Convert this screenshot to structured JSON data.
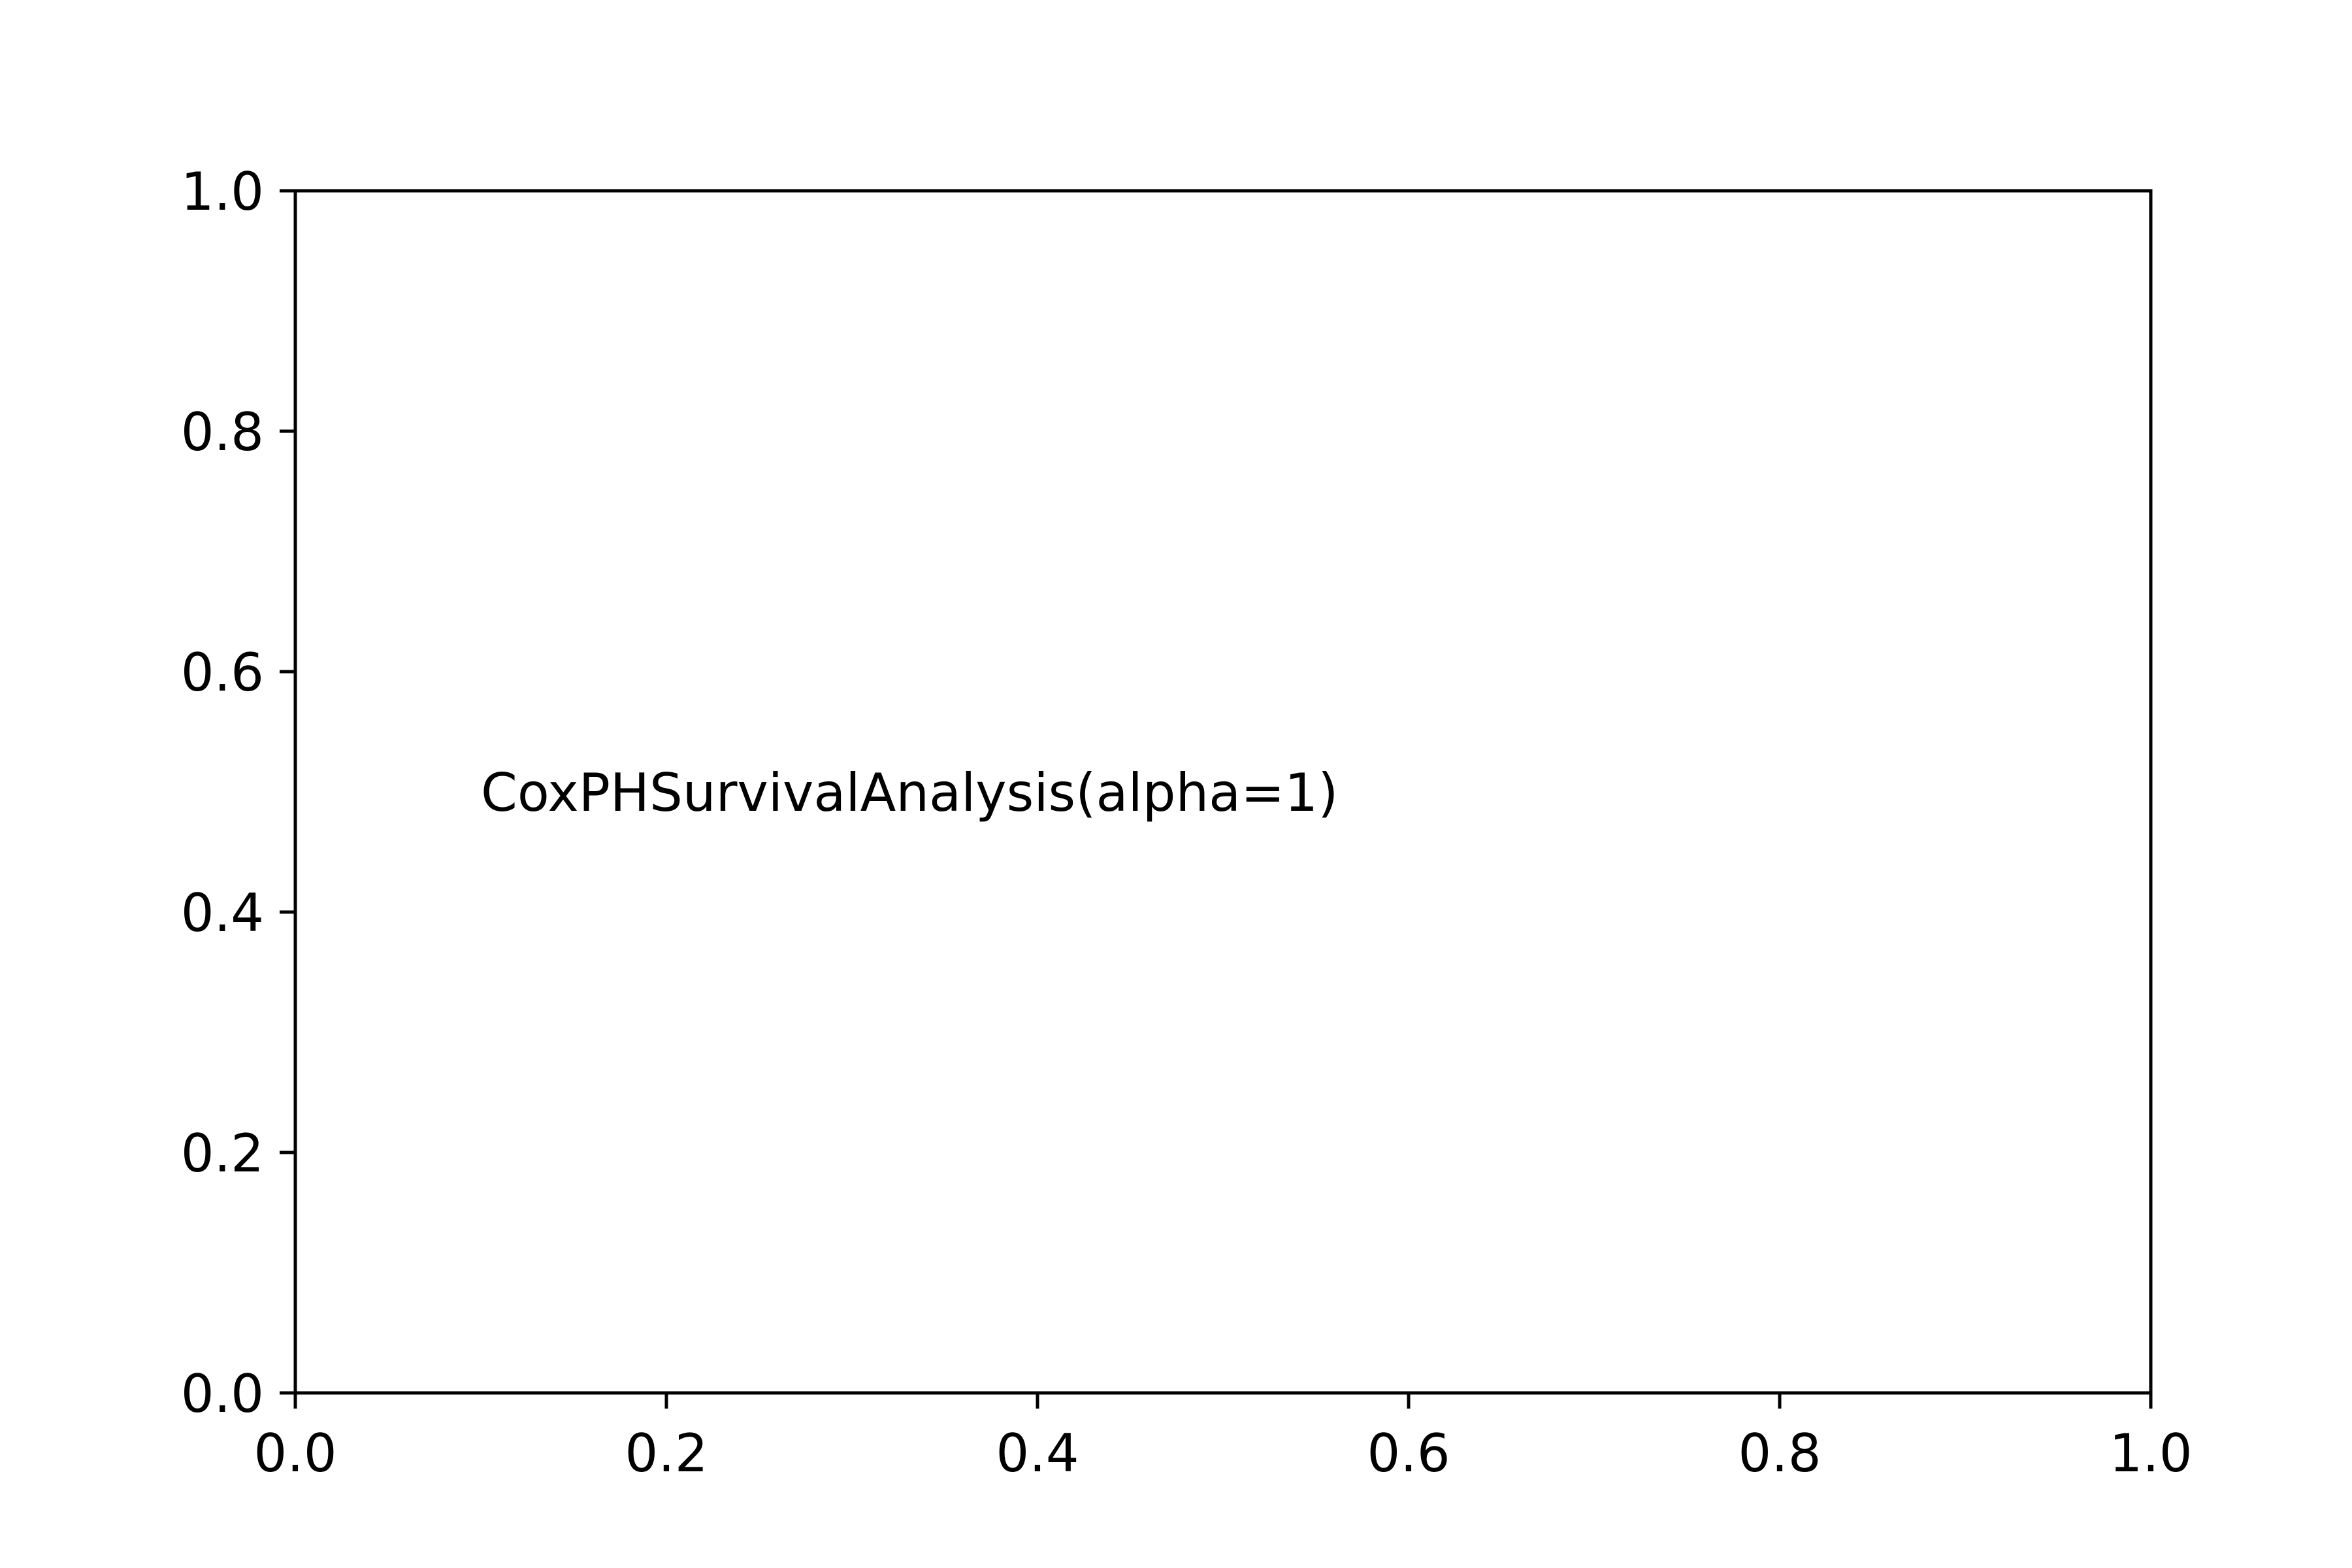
{
  "chart_data": {
    "type": "scatter",
    "title": "",
    "xlabel": "",
    "ylabel": "",
    "xlim": [
      0.0,
      1.0
    ],
    "ylim": [
      0.0,
      1.0
    ],
    "grid": false,
    "series": [],
    "x_ticks": [
      {
        "value": 0.0,
        "label": "0.0"
      },
      {
        "value": 0.2,
        "label": "0.2"
      },
      {
        "value": 0.4,
        "label": "0.4"
      },
      {
        "value": 0.6,
        "label": "0.6"
      },
      {
        "value": 0.8,
        "label": "0.8"
      },
      {
        "value": 1.0,
        "label": "1.0"
      }
    ],
    "y_ticks": [
      {
        "value": 0.0,
        "label": "0.0"
      },
      {
        "value": 0.2,
        "label": "0.2"
      },
      {
        "value": 0.4,
        "label": "0.4"
      },
      {
        "value": 0.6,
        "label": "0.6"
      },
      {
        "value": 0.8,
        "label": "0.8"
      },
      {
        "value": 1.0,
        "label": "1.0"
      }
    ],
    "annotations": [
      {
        "text": "CoxPHSurvivalAnalysis(alpha=1)",
        "x": 0.1,
        "y": 0.5
      }
    ]
  },
  "colors": {
    "axes": "#000000",
    "background": "#ffffff",
    "text": "#000000"
  }
}
